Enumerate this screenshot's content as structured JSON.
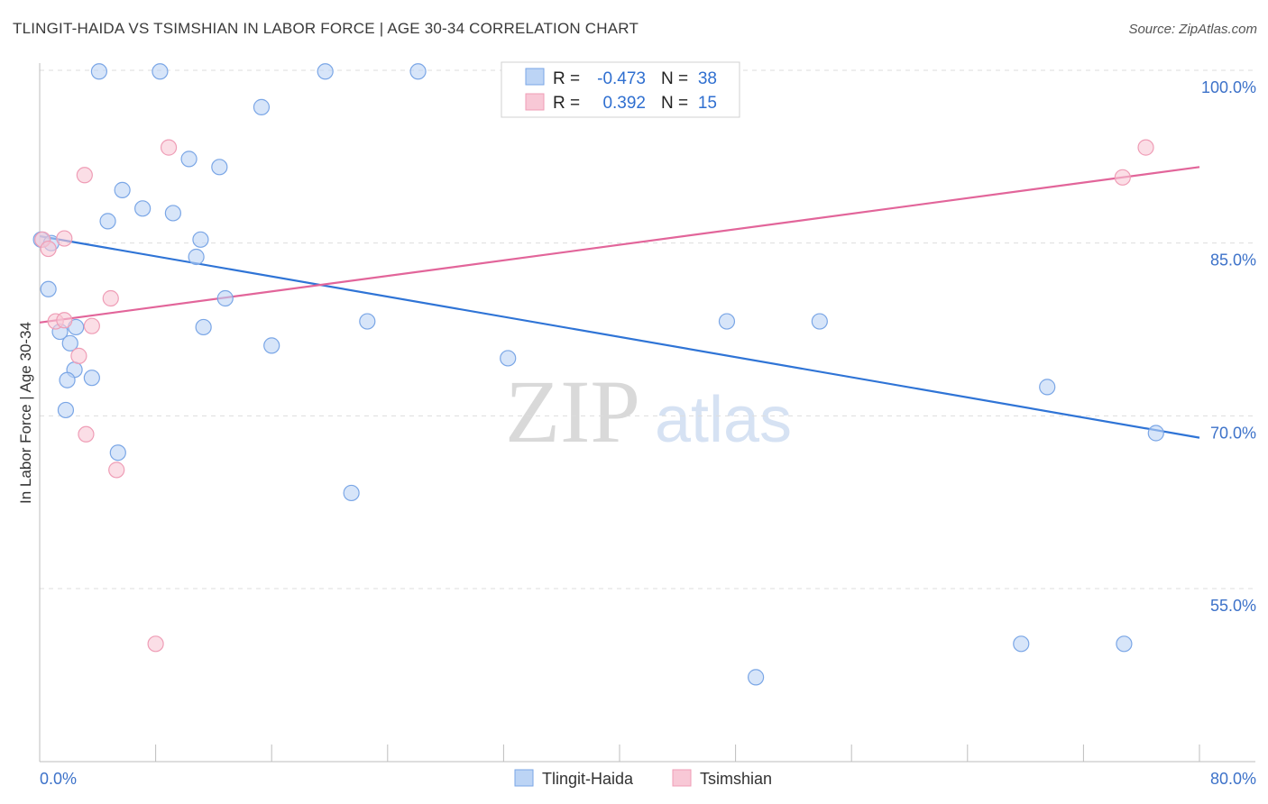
{
  "title": "TLINGIT-HAIDA VS TSIMSHIAN IN LABOR FORCE | AGE 30-34 CORRELATION CHART",
  "source": "Source: ZipAtlas.com",
  "watermark": {
    "zip": "ZIP",
    "atlas": "atlas"
  },
  "colors": {
    "blue_fill": "#bcd4f5",
    "blue_stroke": "#7aa6e6",
    "blue_line": "#2f74d6",
    "pink_fill": "#f8c8d6",
    "pink_stroke": "#ef9db6",
    "pink_line": "#e2659a",
    "axis_label": "#3d72c9",
    "grid": "#dddddd"
  },
  "legend_box": {
    "rows": [
      {
        "r_label": "R =",
        "r_value": "-0.473",
        "n_label": "N =",
        "n_value": "38"
      },
      {
        "r_label": "R =",
        "r_value": "0.392",
        "n_label": "N =",
        "n_value": "15"
      }
    ]
  },
  "chart_data": {
    "type": "scatter",
    "xlabel": "",
    "ylabel": "In Labor Force | Age 30-34",
    "xlim": [
      0,
      80
    ],
    "ylim": [
      40,
      103
    ],
    "x_tick_labels": [
      {
        "value": 0,
        "label": "0.0%"
      },
      {
        "value": 80,
        "label": "80.0%"
      }
    ],
    "y_tick_labels": [
      {
        "value": 100,
        "label": "100.0%"
      },
      {
        "value": 85,
        "label": "85.0%"
      },
      {
        "value": 70,
        "label": "70.0%"
      },
      {
        "value": 55,
        "label": "55.0%"
      }
    ],
    "grid": true,
    "legend_position": "bottom",
    "series": [
      {
        "name": "Tlingit-Haida",
        "color": "blue",
        "points": [
          [
            0.1,
            85.3
          ],
          [
            0.8,
            85.0
          ],
          [
            0.6,
            81.0
          ],
          [
            1.4,
            77.3
          ],
          [
            2.5,
            77.7
          ],
          [
            2.1,
            76.3
          ],
          [
            2.4,
            74.0
          ],
          [
            1.9,
            73.1
          ],
          [
            3.6,
            73.3
          ],
          [
            1.8,
            70.5
          ],
          [
            4.1,
            99.9
          ],
          [
            8.3,
            99.9
          ],
          [
            19.7,
            99.9
          ],
          [
            26.1,
            99.9
          ],
          [
            35.1,
            99.9
          ],
          [
            15.3,
            96.8
          ],
          [
            10.3,
            92.3
          ],
          [
            12.4,
            91.6
          ],
          [
            5.7,
            89.6
          ],
          [
            7.1,
            88.0
          ],
          [
            4.7,
            86.9
          ],
          [
            9.2,
            87.6
          ],
          [
            11.1,
            85.3
          ],
          [
            10.8,
            83.8
          ],
          [
            12.8,
            80.2
          ],
          [
            11.3,
            77.7
          ],
          [
            16.0,
            76.1
          ],
          [
            22.6,
            78.2
          ],
          [
            32.3,
            75.0
          ],
          [
            47.4,
            78.2
          ],
          [
            53.8,
            78.2
          ],
          [
            5.4,
            66.8
          ],
          [
            21.5,
            63.3
          ],
          [
            69.5,
            72.5
          ],
          [
            77.0,
            68.5
          ],
          [
            49.4,
            47.3
          ],
          [
            67.7,
            50.2
          ],
          [
            74.8,
            50.2
          ]
        ],
        "trend": {
          "x": [
            0,
            80
          ],
          "y": [
            85.6,
            68.1
          ]
        }
      },
      {
        "name": "Tsimshian",
        "color": "pink",
        "points": [
          [
            0.2,
            85.3
          ],
          [
            0.6,
            84.5
          ],
          [
            1.7,
            85.4
          ],
          [
            1.1,
            78.2
          ],
          [
            1.7,
            78.3
          ],
          [
            3.6,
            77.8
          ],
          [
            2.7,
            75.2
          ],
          [
            4.9,
            80.2
          ],
          [
            3.2,
            68.4
          ],
          [
            5.3,
            65.3
          ],
          [
            8.9,
            93.3
          ],
          [
            3.1,
            90.9
          ],
          [
            76.3,
            93.3
          ],
          [
            74.7,
            90.7
          ],
          [
            8.0,
            50.2
          ]
        ],
        "trend": {
          "x": [
            0,
            80
          ],
          "y": [
            78.1,
            91.6
          ]
        }
      }
    ]
  }
}
